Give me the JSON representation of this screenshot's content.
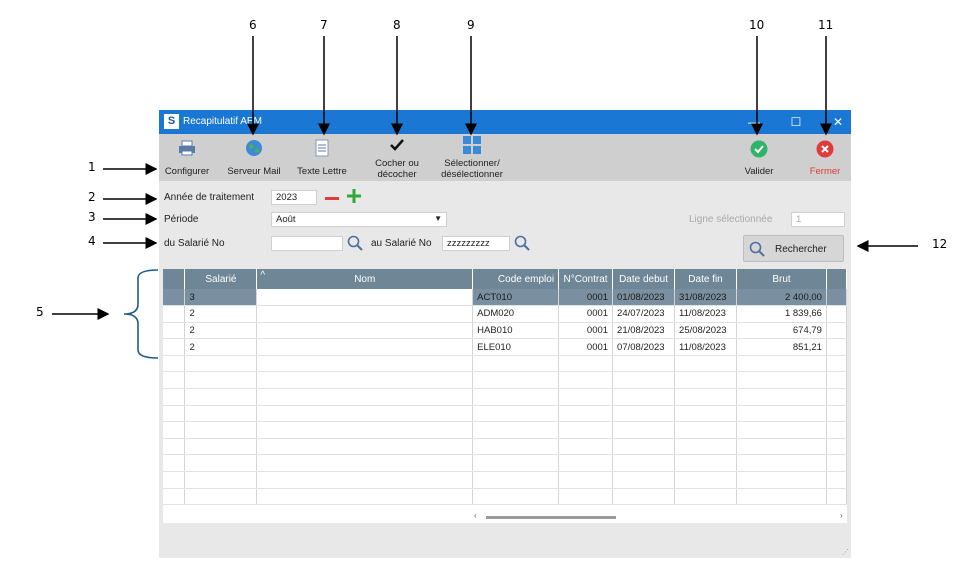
{
  "window": {
    "logo": "S",
    "title": "Recapitulatif AEM",
    "minimize": "—",
    "maximize": "☐",
    "close": "✕"
  },
  "toolbar": {
    "configurer": "Configurer",
    "serveur_mail": "Serveur Mail",
    "texte_lettre": "Texte Lettre",
    "cocher_1": "Cocher ou",
    "cocher_2": "décocher",
    "selectionner_1": "Sélectionner/",
    "selectionner_2": "désélectionner",
    "valider": "Valider",
    "fermer": "Fermer"
  },
  "form": {
    "annee_label": "Année de traitement",
    "annee_value": "2023",
    "periode_label": "Période",
    "periode_value": "Août",
    "ligne_label": "Ligne sélectionnée",
    "ligne_value": "1",
    "salarie_from_label": "du Salarié No",
    "salarie_from_value": "",
    "salarie_to_label": "au Salarié No",
    "salarie_to_value": "zzzzzzzzz",
    "rechercher": "Rechercher"
  },
  "grid": {
    "columns": [
      "",
      "Salarié",
      "Nom",
      "Code emploi",
      "N°Contrat",
      "Date debut",
      "Date fin",
      "Brut",
      ""
    ],
    "rows": [
      {
        "salarie": "3",
        "nom": "",
        "code": "ACT010",
        "contrat": "0001",
        "debut": "01/08/2023",
        "fin": "31/08/2023",
        "brut": "2 400,00"
      },
      {
        "salarie": "2",
        "nom": "",
        "code": "ADM020",
        "contrat": "0001",
        "debut": "24/07/2023",
        "fin": "11/08/2023",
        "brut": "1 839,66"
      },
      {
        "salarie": "2",
        "nom": "",
        "code": "HAB010",
        "contrat": "0001",
        "debut": "21/08/2023",
        "fin": "25/08/2023",
        "brut": "674,79"
      },
      {
        "salarie": "2",
        "nom": "",
        "code": "ELE010",
        "contrat": "0001",
        "debut": "07/08/2023",
        "fin": "11/08/2023",
        "brut": "851,21"
      }
    ],
    "empty_rows": 9
  },
  "callouts": [
    "1",
    "2",
    "3",
    "4",
    "5",
    "6",
    "7",
    "8",
    "9",
    "10",
    "11",
    "12"
  ],
  "colors": {
    "titlebar": "#1a78d4",
    "header": "#6e8696",
    "selected_row": "#7a90a0",
    "valider": "#2fb36b",
    "fermer": "#e03b3b",
    "plus": "#2faa3a",
    "minus": "#e03b3b"
  }
}
